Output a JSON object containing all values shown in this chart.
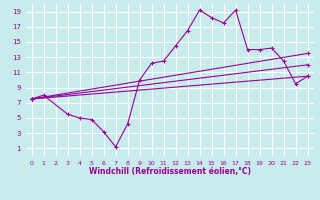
{
  "background_color": "#c8ecec",
  "grid_color": "#ffffff",
  "line_color": "#990099",
  "xlabel": "Windchill (Refroidissement éolien,°C)",
  "xlim": [
    -0.5,
    23.5
  ],
  "ylim": [
    0,
    20
  ],
  "xticks": [
    0,
    1,
    2,
    3,
    4,
    5,
    6,
    7,
    8,
    9,
    10,
    11,
    12,
    13,
    14,
    15,
    16,
    17,
    18,
    19,
    20,
    21,
    22,
    23
  ],
  "yticks": [
    1,
    3,
    5,
    7,
    9,
    11,
    13,
    15,
    17,
    19
  ],
  "line1_x": [
    0,
    23
  ],
  "line1_y": [
    7.5,
    10.5
  ],
  "line2_x": [
    0,
    23
  ],
  "line2_y": [
    7.5,
    12.0
  ],
  "line3_x": [
    0,
    23
  ],
  "line3_y": [
    7.5,
    13.5
  ],
  "zigzag_x": [
    0,
    1,
    3,
    4,
    5,
    6,
    7,
    8,
    9,
    10,
    11,
    12,
    13,
    14,
    15,
    16,
    17,
    18,
    19,
    20,
    21,
    22,
    23
  ],
  "zigzag_y": [
    7.5,
    8.0,
    5.5,
    5.0,
    4.8,
    3.2,
    1.2,
    4.2,
    10.0,
    12.2,
    12.5,
    14.5,
    16.5,
    19.2,
    18.2,
    17.5,
    19.2,
    14.0,
    14.0,
    14.2,
    12.5,
    9.5,
    10.5
  ]
}
